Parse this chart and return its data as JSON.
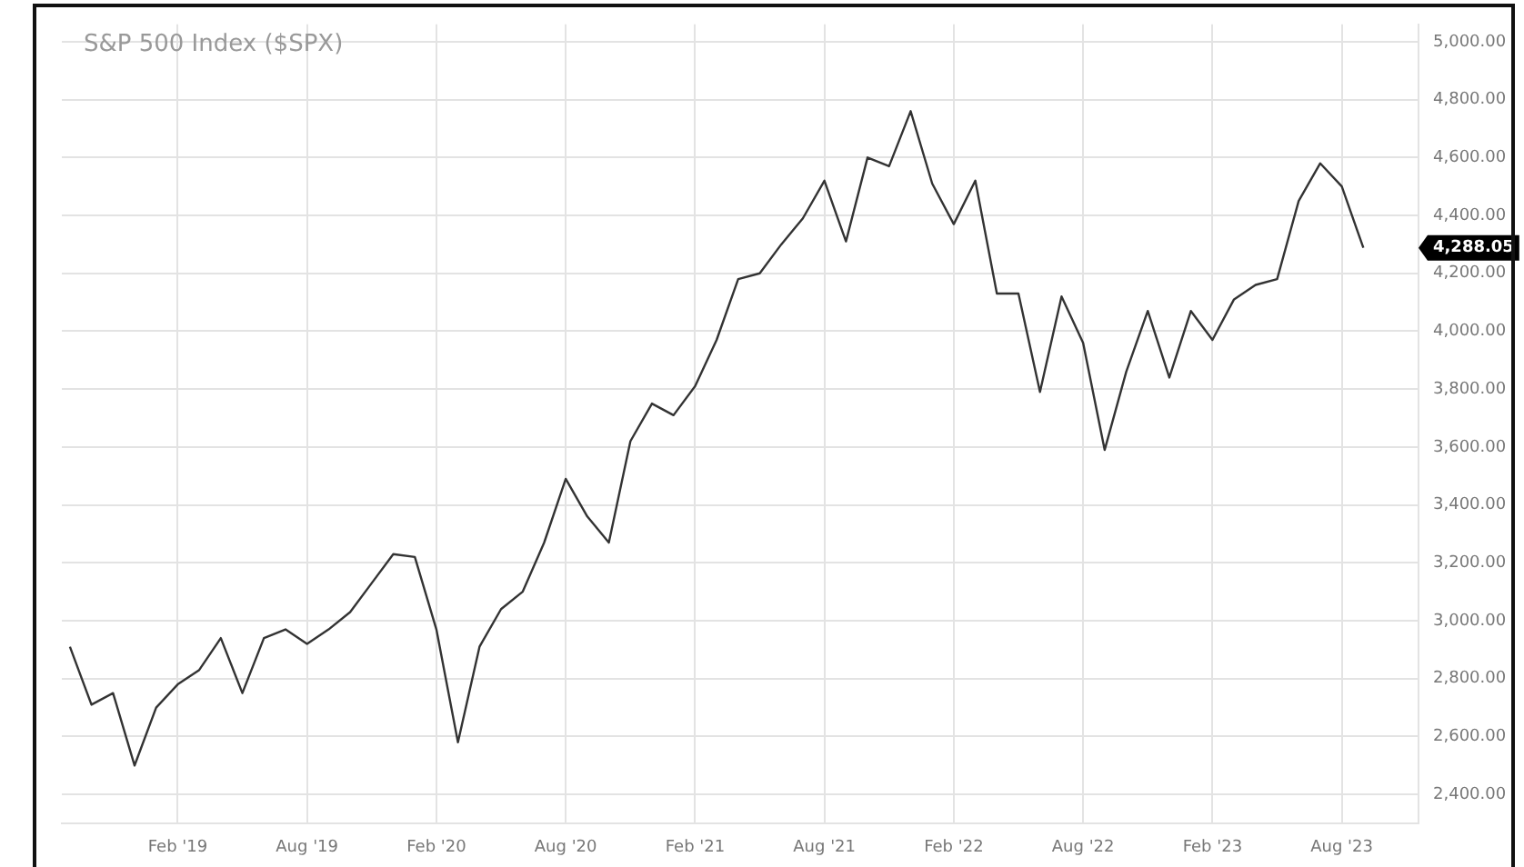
{
  "chart_data": {
    "type": "line",
    "title": "S&P 500 Index ($SPX)",
    "x": [
      "2018-09",
      "2018-10",
      "2018-11",
      "2018-12",
      "2019-01",
      "2019-02",
      "2019-03",
      "2019-04",
      "2019-05",
      "2019-06",
      "2019-07",
      "2019-08",
      "2019-09",
      "2019-10",
      "2019-11",
      "2019-12",
      "2020-01",
      "2020-02",
      "2020-03",
      "2020-04",
      "2020-05",
      "2020-06",
      "2020-07",
      "2020-08",
      "2020-09",
      "2020-10",
      "2020-11",
      "2020-12",
      "2021-01",
      "2021-02",
      "2021-03",
      "2021-04",
      "2021-05",
      "2021-06",
      "2021-07",
      "2021-08",
      "2021-09",
      "2021-10",
      "2021-11",
      "2021-12",
      "2022-01",
      "2022-02",
      "2022-03",
      "2022-04",
      "2022-05",
      "2022-06",
      "2022-07",
      "2022-08",
      "2022-09",
      "2022-10",
      "2022-11",
      "2022-12",
      "2023-01",
      "2023-02",
      "2023-03",
      "2023-04",
      "2023-05",
      "2023-06",
      "2023-07",
      "2023-08",
      "2023-09"
    ],
    "series": [
      {
        "color": "#333333",
        "values": [
          2910,
          2710,
          2750,
          2500,
          2700,
          2780,
          2830,
          2940,
          2750,
          2940,
          2970,
          2920,
          2970,
          3030,
          3130,
          3230,
          3220,
          2970,
          2580,
          2910,
          3040,
          3100,
          3270,
          3490,
          3360,
          3270,
          3620,
          3750,
          3710,
          3810,
          3970,
          4180,
          4200,
          4300,
          4390,
          4520,
          4310,
          4600,
          4570,
          4760,
          4510,
          4370,
          4520,
          4130,
          4130,
          3790,
          4120,
          3960,
          3590,
          3860,
          4070,
          3840,
          4070,
          3970,
          4110,
          4160,
          4180,
          4450,
          4580,
          4500,
          4288.05
        ]
      }
    ],
    "xlim": [
      "2018-08-20",
      "2023-11-18"
    ],
    "xticks": [
      {
        "value": "2019-02",
        "label": "Feb '19"
      },
      {
        "value": "2019-08",
        "label": "Aug '19"
      },
      {
        "value": "2020-02",
        "label": "Feb '20"
      },
      {
        "value": "2020-08",
        "label": "Aug '20"
      },
      {
        "value": "2021-02",
        "label": "Feb '21"
      },
      {
        "value": "2021-08",
        "label": "Aug '21"
      },
      {
        "value": "2022-02",
        "label": "Feb '22"
      },
      {
        "value": "2022-08",
        "label": "Aug '22"
      },
      {
        "value": "2023-02",
        "label": "Feb '23"
      },
      {
        "value": "2023-08",
        "label": "Aug '23"
      }
    ],
    "ylim": [
      2300,
      5060
    ],
    "yticks": [
      {
        "value": 2400,
        "label": "2,400.00"
      },
      {
        "value": 2600,
        "label": "2,600.00"
      },
      {
        "value": 2800,
        "label": "2,800.00"
      },
      {
        "value": 3000,
        "label": "3,000.00"
      },
      {
        "value": 3200,
        "label": "3,200.00"
      },
      {
        "value": 3400,
        "label": "3,400.00"
      },
      {
        "value": 3600,
        "label": "3,600.00"
      },
      {
        "value": 3800,
        "label": "3,800.00"
      },
      {
        "value": 4000,
        "label": "4,000.00"
      },
      {
        "value": 4200,
        "label": "4,200.00"
      },
      {
        "value": 4400,
        "label": "4,400.00"
      },
      {
        "value": 4600,
        "label": "4,600.00"
      },
      {
        "value": 4800,
        "label": "4,800.00"
      },
      {
        "value": 5000,
        "label": "5,000.00"
      }
    ],
    "annotations": [
      "4,288.05"
    ],
    "grid": true,
    "legend": false,
    "marker": "none",
    "line_style": "solid"
  }
}
